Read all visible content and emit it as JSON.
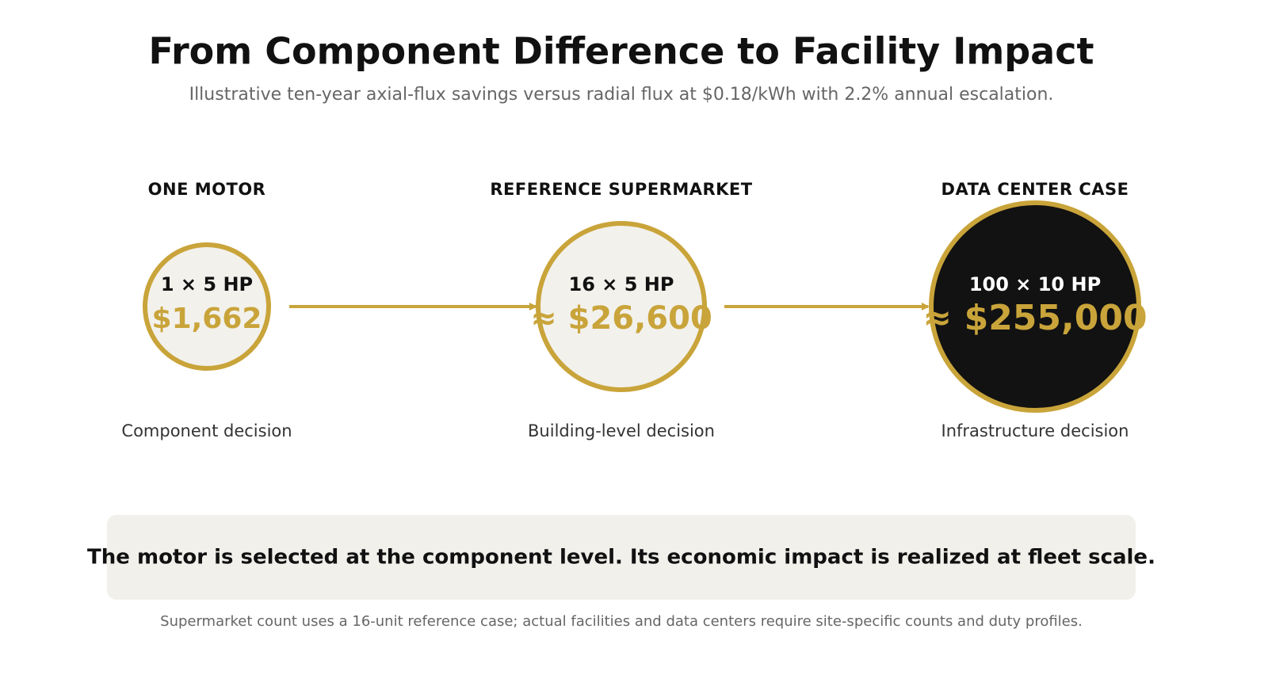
{
  "header": {
    "title": "From Component Difference to Facility Impact",
    "subtitle": "Illustrative ten-year axial-flux savings versus radial flux at $0.18/kWh with 2.2% annual escalation."
  },
  "stages": [
    {
      "label": "ONE MOTOR",
      "units": "1 × 5 HP",
      "value": "$1,662",
      "caption": "Component decision"
    },
    {
      "label": "REFERENCE SUPERMARKET",
      "units": "16 × 5 HP",
      "value": "≈ $26,600",
      "caption": "Building-level decision"
    },
    {
      "label": "DATA CENTER CASE",
      "units": "100 × 10 HP",
      "value": "≈ $255,000",
      "caption": "Infrastructure decision"
    }
  ],
  "message": "The motor is selected at the component level. Its economic impact is realized at fleet scale.",
  "footnote": "Supermarket count uses a 16-unit reference case; actual facilities and data centers require site-specific counts and duty profiles."
}
